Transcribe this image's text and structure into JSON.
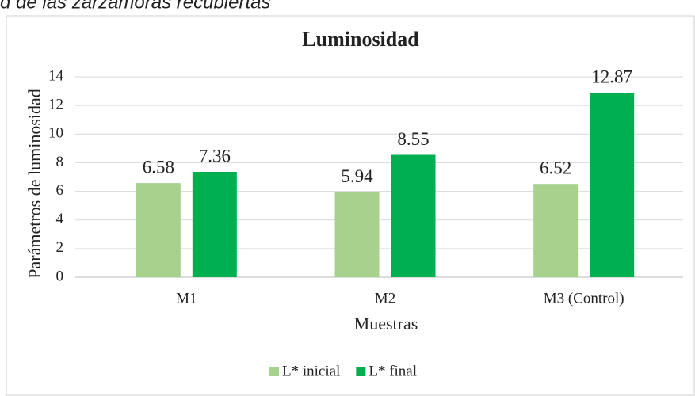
{
  "caption": "d de las zarzamoras recubiertas",
  "chart_data": {
    "type": "bar",
    "title": "Luminosidad",
    "x_label": "Muestras",
    "y_label": "Parámetros de luminosidad",
    "categories": [
      "M1",
      "M2",
      "M3 (Control)"
    ],
    "series": [
      {
        "name": "L* inicial",
        "color": "#a9d18e",
        "values": [
          6.58,
          5.94,
          6.52
        ]
      },
      {
        "name": "L* final",
        "color": "#00b050",
        "values": [
          7.36,
          8.55,
          12.87
        ]
      }
    ],
    "ylim": [
      0,
      14
    ],
    "yticks": [
      0,
      2,
      4,
      6,
      8,
      10,
      12,
      14
    ],
    "grid": true,
    "legend": "bottom"
  }
}
